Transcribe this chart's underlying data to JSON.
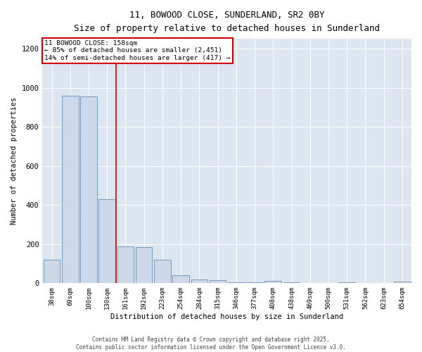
{
  "title_line1": "11, BOWOOD CLOSE, SUNDERLAND, SR2 0BY",
  "title_line2": "Size of property relative to detached houses in Sunderland",
  "xlabel": "Distribution of detached houses by size in Sunderland",
  "ylabel": "Number of detached properties",
  "bar_color": "#ccd9e8",
  "bar_edge_color": "#7799bb",
  "bg_color": "#dce6f0",
  "grid_color": "#ffffff",
  "annotation_box_color": "#cc0000",
  "vline_color": "#cc0000",
  "categories": [
    "38sqm",
    "69sqm",
    "100sqm",
    "130sqm",
    "161sqm",
    "192sqm",
    "223sqm",
    "254sqm",
    "284sqm",
    "315sqm",
    "346sqm",
    "377sqm",
    "408sqm",
    "438sqm",
    "469sqm",
    "500sqm",
    "531sqm",
    "562sqm",
    "623sqm",
    "654sqm"
  ],
  "values": [
    120,
    960,
    955,
    430,
    190,
    185,
    120,
    40,
    18,
    15,
    5,
    5,
    12,
    5,
    3,
    0,
    5,
    0,
    3,
    7
  ],
  "annotation_line1": "11 BOWOOD CLOSE: 158sqm",
  "annotation_line2": "← 85% of detached houses are smaller (2,451)",
  "annotation_line3": "14% of semi-detached houses are larger (417) →",
  "vline_position": 3.5,
  "ylim": [
    0,
    1250
  ],
  "yticks": [
    0,
    200,
    400,
    600,
    800,
    1000,
    1200
  ],
  "footer_line1": "Contains HM Land Registry data © Crown copyright and database right 2025.",
  "footer_line2": "Contains public sector information licensed under the Open Government Licence v3.0."
}
